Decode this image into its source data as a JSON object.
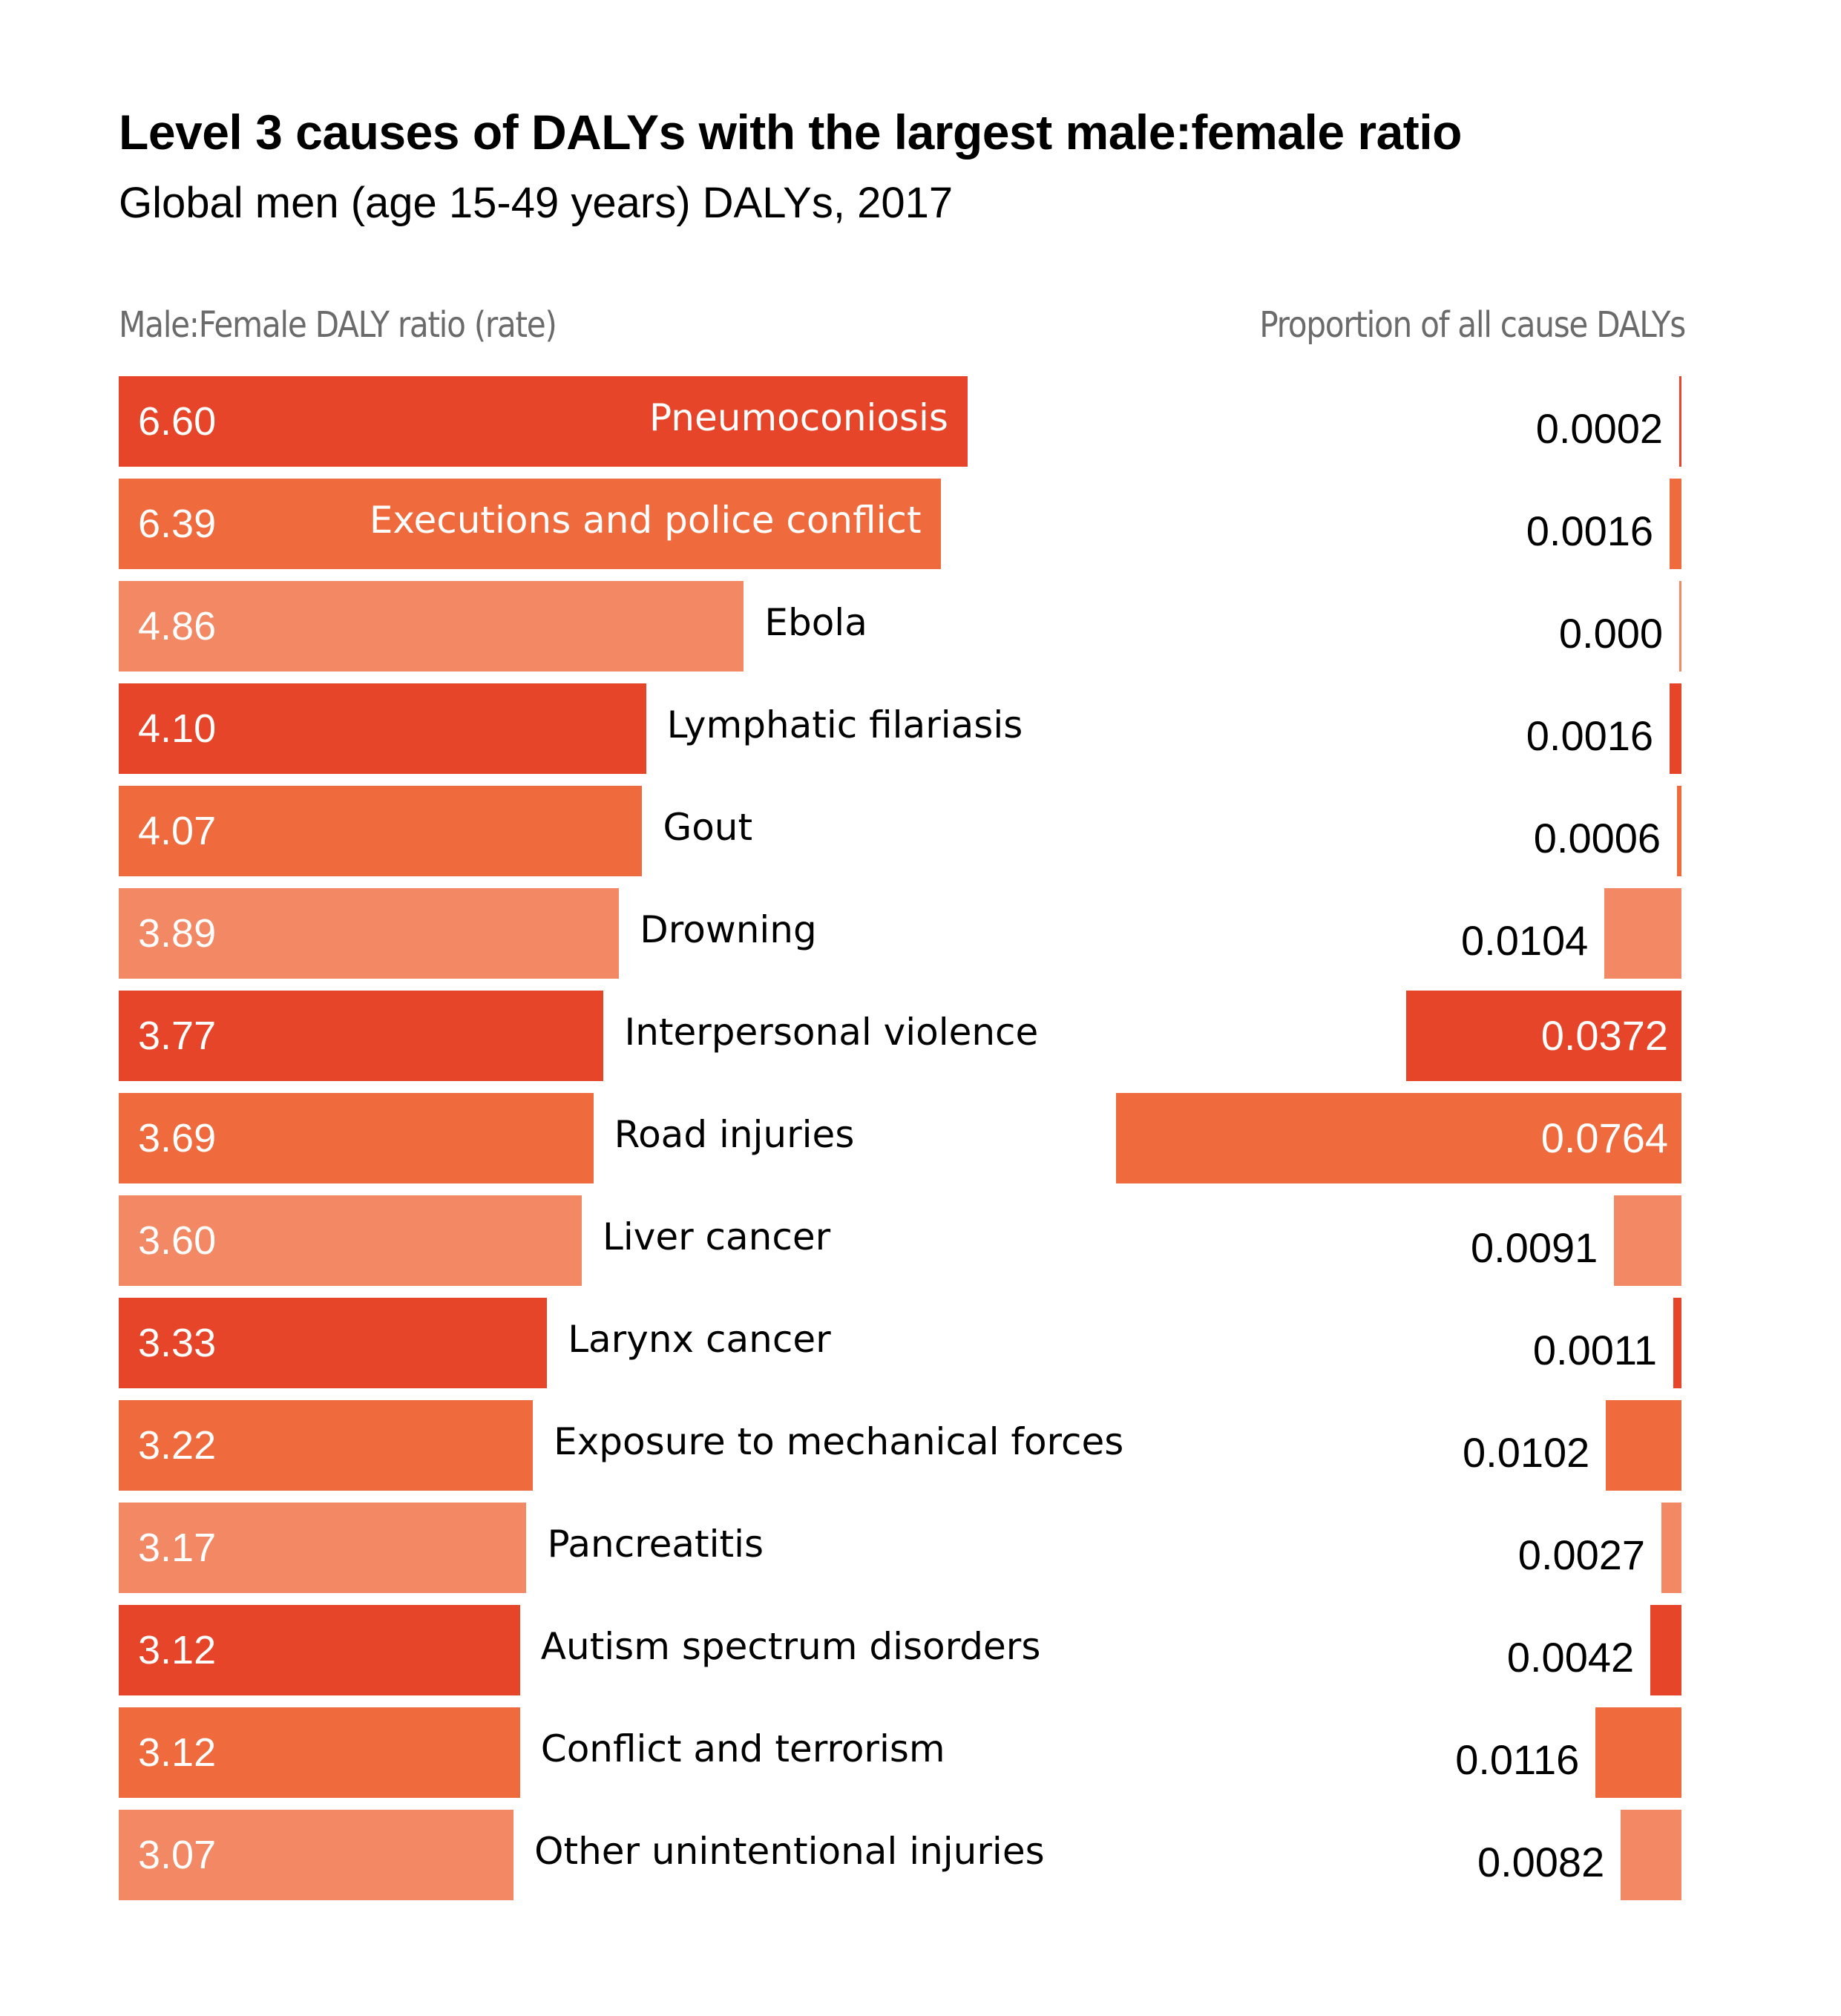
{
  "title": "Level 3 causes of DALYs with the largest male:female ratio",
  "subtitle": "Global men (age 15-49 years) DALYs, 2017",
  "axis_left_label": "Male:Female DALY ratio (rate)",
  "axis_right_label": "Proportion of all cause DALYs",
  "colors": {
    "dark": "#E64529",
    "mid": "#EF6A3C",
    "light": "#F28864",
    "label_gray": "#6B6B6B"
  },
  "chart_data": {
    "type": "bar",
    "orientation": "horizontal",
    "title": "Level 3 causes of DALYs with the largest male:female ratio",
    "subtitle": "Global men (age 15-49 years) DALYs, 2017",
    "categories": [
      "Pneumoconiosis",
      "Executions and police conflict",
      "Ebola",
      "Lymphatic filariasis",
      "Gout",
      "Drowning",
      "Interpersonal violence",
      "Road injuries",
      "Liver cancer",
      "Larynx cancer",
      "Exposure to mechanical forces",
      "Pancreatitis",
      "Autism spectrum disorders",
      "Conflict and terrorism",
      "Other unintentional injuries"
    ],
    "series": [
      {
        "name": "Male:Female DALY ratio (rate)",
        "values": [
          6.6,
          6.39,
          4.86,
          4.1,
          4.07,
          3.89,
          3.77,
          3.69,
          3.6,
          3.33,
          3.22,
          3.17,
          3.12,
          3.12,
          3.07
        ],
        "labels": [
          "6.60",
          "6.39",
          "4.86",
          "4.10",
          "4.07",
          "3.89",
          "3.77",
          "3.69",
          "3.60",
          "3.33",
          "3.22",
          "3.17",
          "3.12",
          "3.12",
          "3.07"
        ],
        "xlim": [
          0,
          6.6
        ]
      },
      {
        "name": "Proportion of all cause DALYs",
        "values": [
          0.0002,
          0.0016,
          0.0,
          0.0016,
          0.0006,
          0.0104,
          0.0372,
          0.0764,
          0.0091,
          0.0011,
          0.0102,
          0.0027,
          0.0042,
          0.0116,
          0.0082
        ],
        "labels": [
          "0.0002",
          "0.0016",
          "0.000",
          "0.0016",
          "0.0006",
          "0.0104",
          "0.0372",
          "0.0764",
          "0.0091",
          "0.0011",
          "0.0102",
          "0.0027",
          "0.0042",
          "0.0116",
          "0.0082"
        ],
        "xlim": [
          0,
          0.0764
        ],
        "direction": "right-aligned"
      }
    ],
    "color_cycle": [
      "dark",
      "mid",
      "light"
    ],
    "cause_label_inside": [
      true,
      true,
      false,
      false,
      false,
      false,
      false,
      false,
      false,
      false,
      false,
      false,
      false,
      false,
      false
    ],
    "grid": false,
    "legend": "none"
  }
}
